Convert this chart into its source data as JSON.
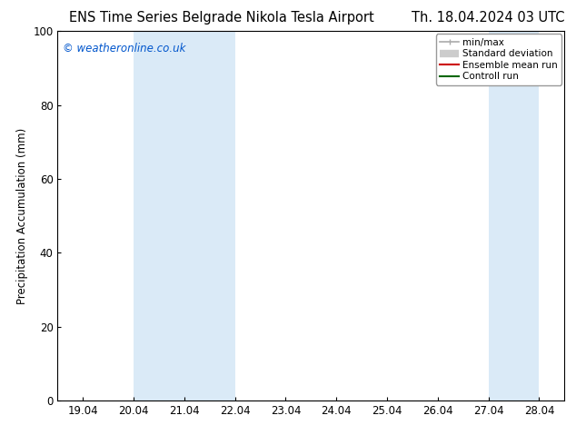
{
  "title_left": "ENS Time Series Belgrade Nikola Tesla Airport",
  "title_right": "Th. 18.04.2024 03 UTC",
  "ylabel": "Precipitation Accumulation (mm)",
  "watermark": "© weatheronline.co.uk",
  "watermark_color": "#0055cc",
  "ylim": [
    0,
    100
  ],
  "yticks": [
    0,
    20,
    40,
    60,
    80,
    100
  ],
  "x_tick_labels": [
    "19.04",
    "20.04",
    "21.04",
    "22.04",
    "23.04",
    "24.04",
    "25.04",
    "26.04",
    "27.04",
    "28.04"
  ],
  "x_tick_positions": [
    0,
    1,
    2,
    3,
    4,
    5,
    6,
    7,
    8,
    9
  ],
  "shaded_regions": [
    {
      "x_start": 1,
      "x_end": 3,
      "color": "#daeaf7"
    },
    {
      "x_start": 8,
      "x_end": 9,
      "color": "#daeaf7"
    }
  ],
  "legend_items": [
    {
      "label": "min/max",
      "color": "#aaaaaa",
      "lw": 1.2
    },
    {
      "label": "Standard deviation",
      "color": "#cccccc",
      "lw": 6
    },
    {
      "label": "Ensemble mean run",
      "color": "#cc0000",
      "lw": 1.5
    },
    {
      "label": "Controll run",
      "color": "#006600",
      "lw": 1.5
    }
  ],
  "bg_color": "#ffffff",
  "plot_bg_color": "#ffffff",
  "title_fontsize": 10.5,
  "tick_label_fontsize": 8.5,
  "ylabel_fontsize": 8.5
}
